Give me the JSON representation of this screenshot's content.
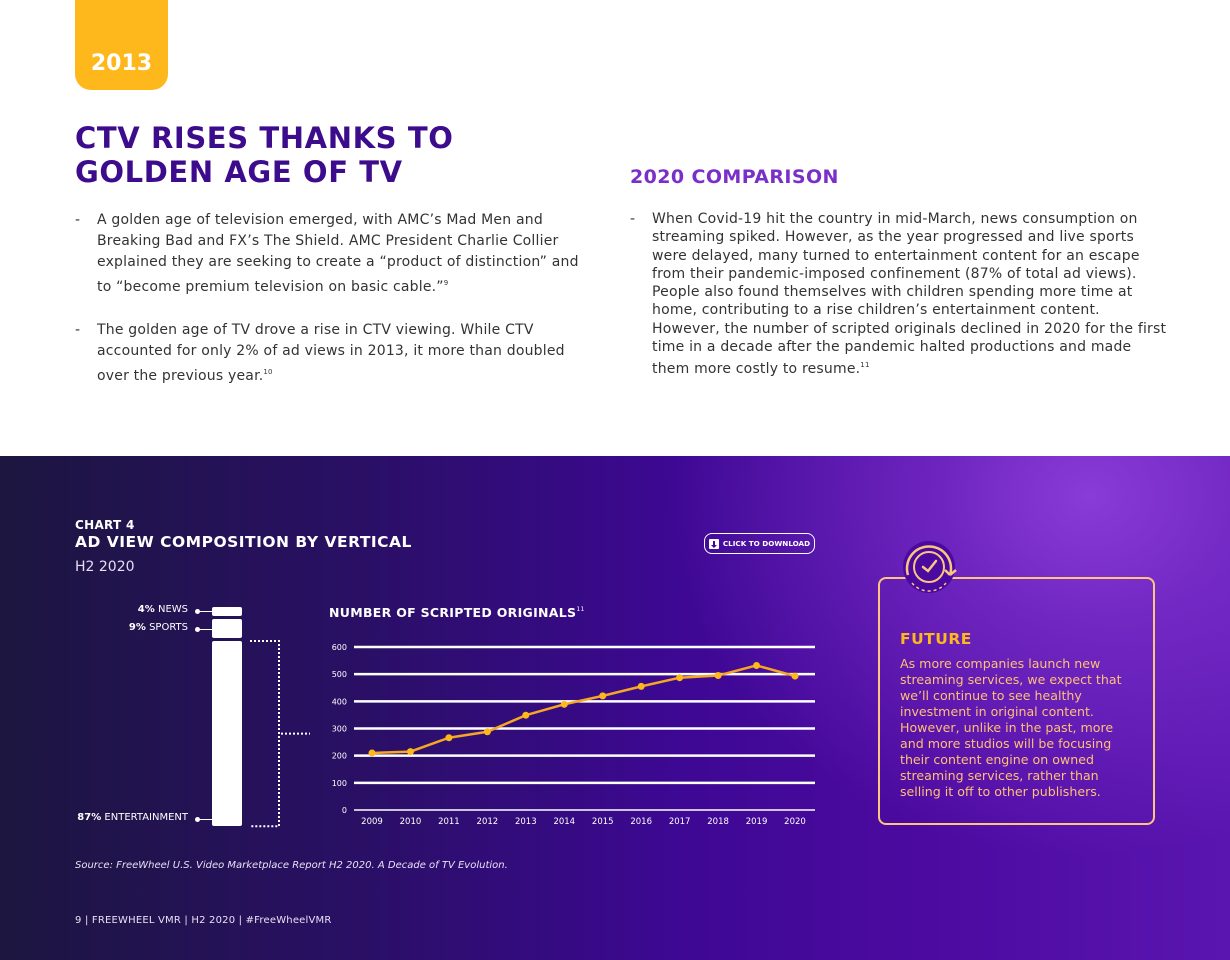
{
  "page": {
    "year_tab": "2013",
    "title": "CTV RISES THANKS TO GOLDEN AGE OF TV",
    "left_bullets": [
      {
        "text": "A golden age of television emerged, with AMC’s Mad Men and Breaking Bad and FX’s The Shield. AMC President Charlie Collier explained they are seeking to create a “product of distinction” and to “become premium television on basic cable.”",
        "ref": "9"
      },
      {
        "text": "The golden age of TV drove a rise in CTV viewing. While CTV accounted for only 2% of ad views in 2013, it more than doubled over the previous year.",
        "ref": "10"
      }
    ],
    "comparison_title": "2020 COMPARISON",
    "right_bullets": [
      {
        "text": "When Covid-19 hit the country in mid-March, news consumption on streaming spiked. However, as the year progressed and live sports were delayed, many turned to entertainment content for an escape from their pandemic-imposed confinement (87% of total ad views). People also found themselves with children spending more time at home, contributing to a rise children’s entertainment content. However, the number of scripted originals declined in 2020 for the first time in a decade after the pandemic halted productions and made them more costly to resume.",
        "ref": "11"
      }
    ],
    "bullet_dash": "-"
  },
  "chart_section": {
    "kicker": "CHART 4",
    "title": "AD VIEW COMPOSITION BY VERTICAL",
    "subtitle": "H2 2020",
    "download_label": "CLICK TO DOWNLOAD",
    "source": "Source: FreeWheel U.S. Video Marketplace Report H2 2020. A Decade of TV Evolution.",
    "footer": "9  |  FREEWHEEL VMR  |  H2 2020  |  #FreeWheelVMR"
  },
  "future": {
    "title": "FUTURE",
    "text": "As more companies launch new streaming services, we expect that we’ll continue to see healthy investment in original content. However, unlike in the past, more and more studios will be focusing their content engine on owned streaming services, rather than selling it off to other publishers."
  },
  "colors": {
    "accent_yellow": "#ffb81c",
    "title_purple": "#3d0c8c",
    "comparison_purple": "#7a2fc8",
    "line_orange": "#f5a623",
    "future_border": "#fcc57f"
  },
  "chart_data": [
    {
      "type": "bar",
      "stacked": true,
      "title": "AD VIEW COMPOSITION BY VERTICAL",
      "subtitle": "H2 2020",
      "categories": [
        "NEWS",
        "SPORTS",
        "ENTERTAINMENT"
      ],
      "values": [
        4,
        9,
        87
      ],
      "value_labels": [
        "4%",
        "9%",
        "87%"
      ],
      "unit": "%"
    },
    {
      "type": "line",
      "title": "NUMBER OF SCRIPTED ORIGINALS",
      "title_ref": "11",
      "x": [
        "2009",
        "2010",
        "2011",
        "2012",
        "2013",
        "2014",
        "2015",
        "2016",
        "2017",
        "2018",
        "2019",
        "2020"
      ],
      "values": [
        210,
        215,
        266,
        288,
        349,
        389,
        420,
        455,
        487,
        495,
        532,
        493
      ],
      "yticks": [
        "0",
        "100",
        "200",
        "300",
        "400",
        "500",
        "600"
      ],
      "ylim": [
        0,
        600
      ],
      "grid": true
    }
  ]
}
